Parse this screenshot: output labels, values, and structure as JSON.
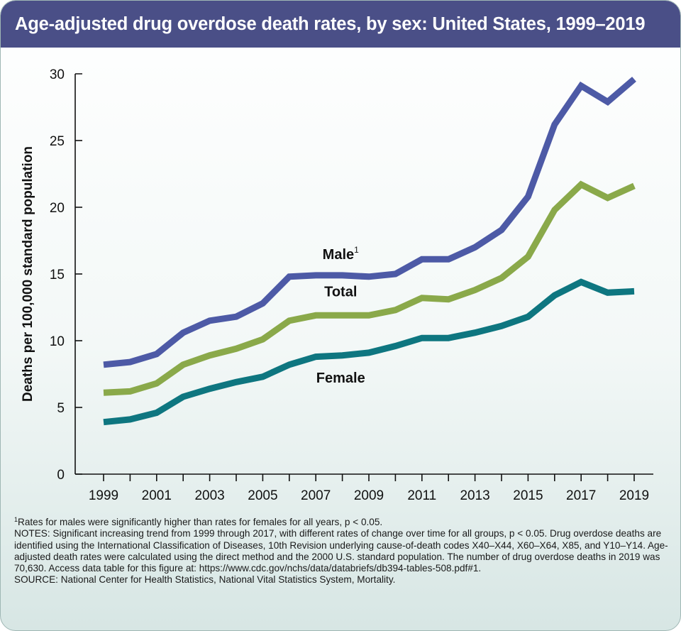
{
  "header": {
    "title": "Age-adjusted drug overdose death rates, by sex: United States, 1999–2019"
  },
  "chart_data": {
    "type": "line",
    "title": "Age-adjusted drug overdose death rates, by sex: United States, 1999–2019",
    "xlabel": "",
    "ylabel": "Deaths per 100,000 standard population",
    "x": [
      1999,
      2000,
      2001,
      2002,
      2003,
      2004,
      2005,
      2006,
      2007,
      2008,
      2009,
      2010,
      2011,
      2012,
      2013,
      2014,
      2015,
      2016,
      2017,
      2018,
      2019
    ],
    "x_ticks": [
      "1999",
      "2001",
      "2003",
      "2005",
      "2007",
      "2009",
      "2011",
      "2013",
      "2015",
      "2017",
      "2019"
    ],
    "ylim": [
      0,
      30
    ],
    "y_ticks": [
      "0",
      "5",
      "10",
      "15",
      "20",
      "25",
      "30"
    ],
    "grid": false,
    "series": [
      {
        "name": "Male",
        "label_sup": "1",
        "color": "#4d5aa6",
        "values": [
          8.2,
          8.4,
          9.0,
          10.6,
          11.5,
          11.8,
          12.8,
          14.8,
          14.9,
          14.9,
          14.8,
          15.0,
          16.1,
          16.1,
          17.0,
          18.3,
          20.8,
          26.2,
          29.1,
          27.9,
          29.6
        ]
      },
      {
        "name": "Total",
        "label_sup": "",
        "color": "#8aa94a",
        "values": [
          6.1,
          6.2,
          6.8,
          8.2,
          8.9,
          9.4,
          10.1,
          11.5,
          11.9,
          11.9,
          11.9,
          12.3,
          13.2,
          13.1,
          13.8,
          14.7,
          16.3,
          19.8,
          21.7,
          20.7,
          21.6
        ]
      },
      {
        "name": "Female",
        "label_sup": "",
        "color": "#0e7680",
        "values": [
          3.9,
          4.1,
          4.6,
          5.8,
          6.4,
          6.9,
          7.3,
          8.2,
          8.8,
          8.9,
          9.1,
          9.6,
          10.2,
          10.2,
          10.6,
          11.1,
          11.8,
          13.4,
          14.4,
          13.6,
          13.7
        ]
      }
    ]
  },
  "notes": {
    "footnote_marker": "1",
    "footnote": "Rates for males were significantly higher than rates for females for all years, p < 0.05.",
    "notes_text": "NOTES: Significant increasing trend from 1999 through 2017, with different rates of change over time for all groups, p < 0.05. Drug overdose deaths are identified using the International Classification of Diseases, 10th Revision underlying cause-of-death codes X40–X44, X60–X64, X85, and Y10–Y14. Age-adjusted death rates were calculated using the direct method and the 2000 U.S. standard population. The number of drug overdose deaths in 2019 was 70,630. Access data table for this figure at: https://www.cdc.gov/nchs/data/databriefs/db394-tables-508.pdf#1.",
    "source": "SOURCE: National Center for Health Statistics, National Vital Statistics System, Mortality."
  }
}
